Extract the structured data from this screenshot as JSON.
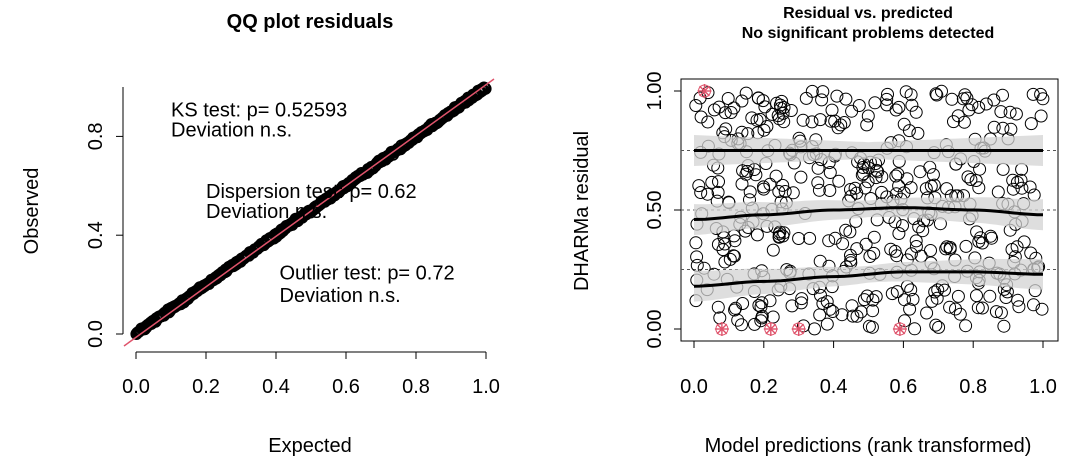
{
  "chart_data": [
    {
      "type": "scatter",
      "title": "QQ plot residuals",
      "xlabel": "Expected",
      "ylabel": "Observed",
      "xlim": [
        0,
        1
      ],
      "ylim": [
        0,
        1
      ],
      "x_ticks": [
        "0.0",
        "0.2",
        "0.4",
        "0.6",
        "0.8",
        "1.0"
      ],
      "x_tick_values": [
        0,
        0.2,
        0.4,
        0.6,
        0.8,
        1.0
      ],
      "y_ticks": [
        "0.0",
        "0.4",
        "0.8"
      ],
      "y_tick_values": [
        0,
        0.4,
        0.8
      ],
      "reference_line": {
        "from": [
          0,
          0
        ],
        "to": [
          1,
          1
        ],
        "color": "#DF536B"
      },
      "series": [
        {
          "points": "quantile pairs lying along y = x from (0,0) to (1,1)",
          "color": "#000000"
        }
      ],
      "annotations": [
        {
          "text": "KS test: p= 0.52593",
          "x": 0.1,
          "y": 0.88
        },
        {
          "text": "Deviation  n.s.",
          "x": 0.1,
          "y": 0.8
        },
        {
          "text": "Dispersion test: p= 0.62",
          "x": 0.2,
          "y": 0.55
        },
        {
          "text": "Deviation  n.s.",
          "x": 0.2,
          "y": 0.47
        },
        {
          "text": "Outlier test: p= 0.72",
          "x": 0.41,
          "y": 0.22
        },
        {
          "text": "Deviation  n.s.",
          "x": 0.41,
          "y": 0.13
        }
      ]
    },
    {
      "type": "scatter",
      "title": "Residual vs. predicted",
      "subtitle": "No significant problems detected",
      "xlabel": "Model predictions (rank transformed)",
      "ylabel": "DHARMa residual",
      "xlim": [
        0,
        1
      ],
      "ylim": [
        0,
        1
      ],
      "x_ticks": [
        "0.0",
        "0.2",
        "0.4",
        "0.6",
        "0.8",
        "1.0"
      ],
      "x_tick_values": [
        0,
        0.2,
        0.4,
        0.6,
        0.8,
        1.0
      ],
      "y_ticks": [
        "0.00",
        "0.50",
        "1.00"
      ],
      "y_tick_values": [
        0,
        0.5,
        1.0
      ],
      "reference_lines_y": [
        0.25,
        0.5,
        0.75
      ],
      "quantile_curves": [
        {
          "name": "q0.25",
          "x": [
            0,
            0.2,
            0.4,
            0.6,
            0.8,
            1.0
          ],
          "y": [
            0.18,
            0.2,
            0.22,
            0.24,
            0.24,
            0.23
          ]
        },
        {
          "name": "q0.5",
          "x": [
            0,
            0.2,
            0.4,
            0.6,
            0.8,
            1.0
          ],
          "y": [
            0.46,
            0.48,
            0.5,
            0.51,
            0.5,
            0.48
          ]
        },
        {
          "name": "q0.75",
          "x": [
            0,
            0.2,
            0.4,
            0.6,
            0.8,
            1.0
          ],
          "y": [
            0.75,
            0.75,
            0.75,
            0.75,
            0.75,
            0.75
          ]
        }
      ],
      "outliers": [
        {
          "x": 0.03,
          "y": 1.0
        },
        {
          "x": 0.08,
          "y": 0.0
        },
        {
          "x": 0.22,
          "y": 0.0
        },
        {
          "x": 0.3,
          "y": 0.0
        },
        {
          "x": 0.59,
          "y": 0.0
        }
      ],
      "points_description": "approximately 500 residuals uniformly spread over x in [0,1] and y in [0,1]",
      "colors": {
        "points": "#000000",
        "outliers": "#DF536B",
        "curves": "#000000",
        "band": "#D3D3D3"
      }
    }
  ]
}
